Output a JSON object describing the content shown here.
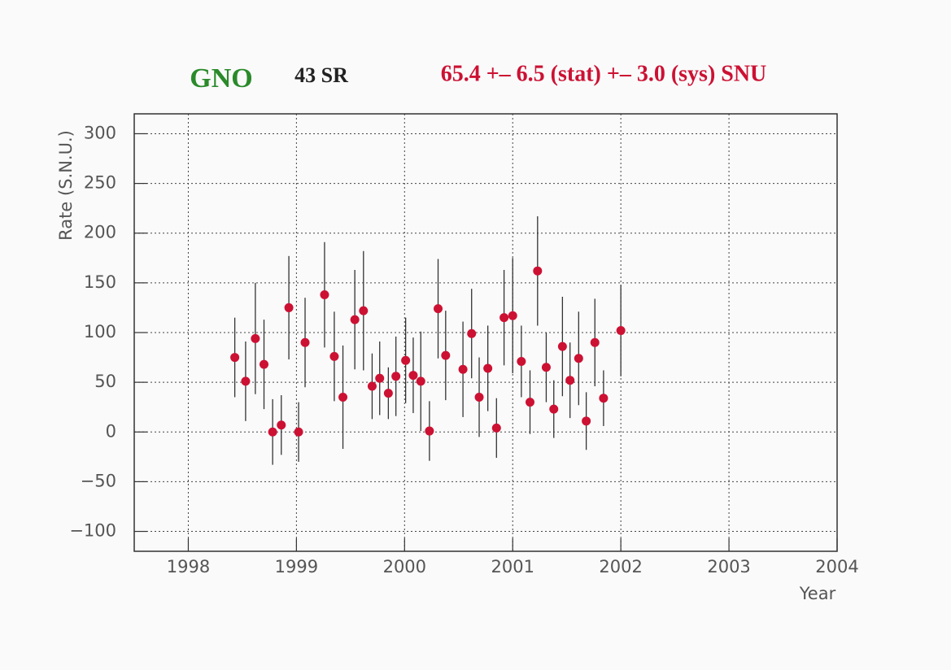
{
  "chart_data": {
    "type": "scatter",
    "title": "GNO",
    "subtitle": "43 SR",
    "annotation": "65.4 +– 6.5 (stat) +– 3.0 (sys) SNU",
    "x_label": "Year",
    "y_label": "Rate (S.N.U.)",
    "xlim": [
      1997.5,
      2004
    ],
    "xticks": [
      1998,
      1999,
      2000,
      2001,
      2002,
      2003,
      2004
    ],
    "ylim": [
      -120,
      320
    ],
    "yticks": [
      {
        "value": -100,
        "label": "−100"
      },
      {
        "value": -50,
        "label": "−50"
      },
      0,
      50,
      100,
      150,
      200,
      250,
      300
    ],
    "grid": true,
    "series": [
      {
        "color": "#cc1133",
        "x": [
          1998.43,
          1998.53,
          1998.62,
          1998.7,
          1998.78,
          1998.86,
          1998.93,
          1999.02,
          1999.08,
          1999.26,
          1999.35,
          1999.43,
          1999.54,
          1999.62,
          1999.7,
          1999.77,
          1999.85,
          1999.92,
          2000.01,
          2000.08,
          2000.15,
          2000.23,
          2000.31,
          2000.38,
          2000.54,
          2000.62,
          2000.69,
          2000.77,
          2000.85,
          2000.92,
          2001.0,
          2001.08,
          2001.16,
          2001.23,
          2001.31,
          2001.38,
          2001.46,
          2001.53,
          2001.61,
          2001.68,
          2001.76,
          2001.84,
          2002.0
        ],
        "values": [
          75,
          51,
          94,
          68,
          0,
          7,
          125,
          0,
          90,
          138,
          76,
          35,
          113,
          122,
          46,
          54,
          39,
          56,
          72,
          57,
          51,
          1,
          124,
          77,
          63,
          99,
          35,
          64,
          4,
          115,
          117,
          71,
          30,
          162,
          65,
          23,
          86,
          52,
          74,
          11,
          90,
          34,
          102
        ],
        "errors": [
          40,
          40,
          56,
          45,
          33,
          30,
          52,
          30,
          45,
          53,
          45,
          52,
          50,
          60,
          33,
          37,
          26,
          40,
          43,
          38,
          50,
          30,
          50,
          45,
          48,
          45,
          40,
          43,
          30,
          48,
          58,
          36,
          32,
          55,
          35,
          29,
          50,
          38,
          47,
          29,
          44,
          28,
          46
        ]
      }
    ]
  }
}
